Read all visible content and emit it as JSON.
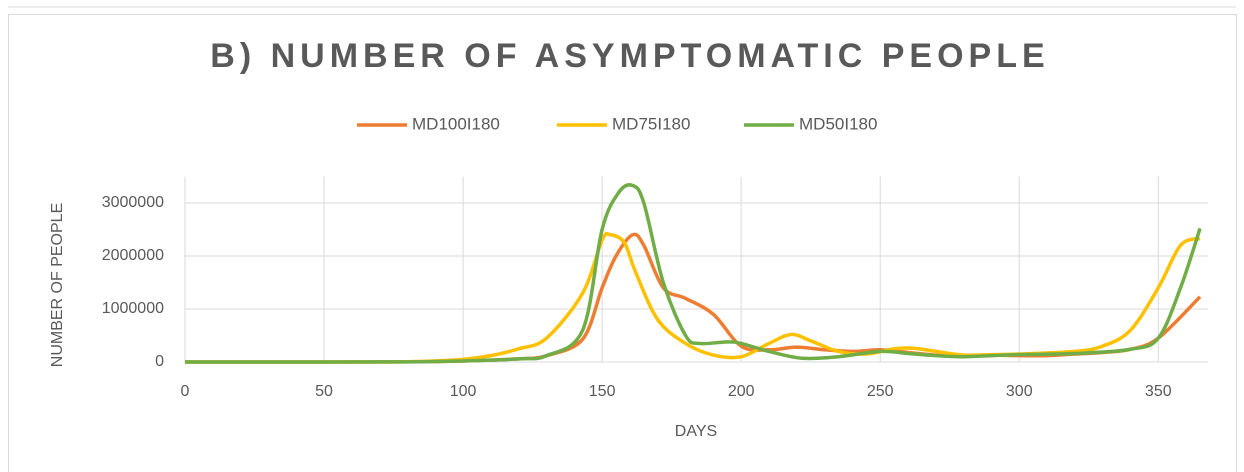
{
  "chart_data": {
    "type": "line",
    "title": "B) NUMBER OF ASYMPTOMATIC PEOPLE",
    "x_label": "DAYS",
    "y_label": "NUMBER OF PEOPLE",
    "xlim": [
      0,
      365
    ],
    "xticks": [
      0,
      50,
      100,
      150,
      200,
      250,
      300,
      350
    ],
    "ylim": [
      0,
      3500000
    ],
    "yticks": [
      0,
      1000000,
      2000000,
      3000000
    ],
    "grid": true,
    "legend": "top",
    "series": [
      {
        "name": "MD100I180",
        "color": "#ED7D31",
        "x": [
          0,
          50,
          80,
          100,
          120,
          130,
          143,
          150,
          155,
          161,
          165,
          172,
          180,
          190,
          200,
          210,
          220,
          230,
          240,
          250,
          260,
          270,
          280,
          290,
          300,
          310,
          320,
          330,
          340,
          350,
          365
        ],
        "values": [
          0,
          0,
          5000,
          20000,
          60000,
          120000,
          430000,
          1400000,
          2000000,
          2400000,
          2200000,
          1400000,
          1200000,
          900000,
          300000,
          230000,
          280000,
          230000,
          200000,
          230000,
          180000,
          130000,
          120000,
          130000,
          120000,
          120000,
          150000,
          180000,
          240000,
          450000,
          1230000
        ]
      },
      {
        "name": "MD75I180",
        "color": "#FFC000",
        "x": [
          0,
          50,
          80,
          100,
          110,
          120,
          130,
          143,
          150,
          153,
          158,
          162,
          170,
          180,
          190,
          200,
          210,
          218,
          225,
          235,
          245,
          255,
          262,
          270,
          280,
          290,
          300,
          320,
          330,
          340,
          350,
          358,
          365
        ],
        "values": [
          0,
          0,
          5000,
          50000,
          120000,
          250000,
          450000,
          1300000,
          2300000,
          2400000,
          2250000,
          1700000,
          800000,
          350000,
          130000,
          100000,
          350000,
          520000,
          400000,
          200000,
          150000,
          250000,
          260000,
          200000,
          130000,
          140000,
          150000,
          200000,
          300000,
          600000,
          1400000,
          2200000,
          2330000
        ]
      },
      {
        "name": "MD50I180",
        "color": "#70AD47",
        "x": [
          0,
          50,
          80,
          100,
          120,
          130,
          143,
          150,
          156,
          161,
          165,
          172,
          180,
          185,
          195,
          200,
          210,
          222,
          235,
          250,
          260,
          270,
          280,
          300,
          320,
          340,
          350,
          358,
          365
        ],
        "values": [
          0,
          0,
          3000,
          20000,
          60000,
          120000,
          600000,
          2500000,
          3200000,
          3330000,
          3000000,
          1500000,
          500000,
          350000,
          380000,
          350000,
          200000,
          70000,
          100000,
          200000,
          160000,
          120000,
          100000,
          140000,
          160000,
          240000,
          450000,
          1400000,
          2520000
        ]
      }
    ]
  }
}
